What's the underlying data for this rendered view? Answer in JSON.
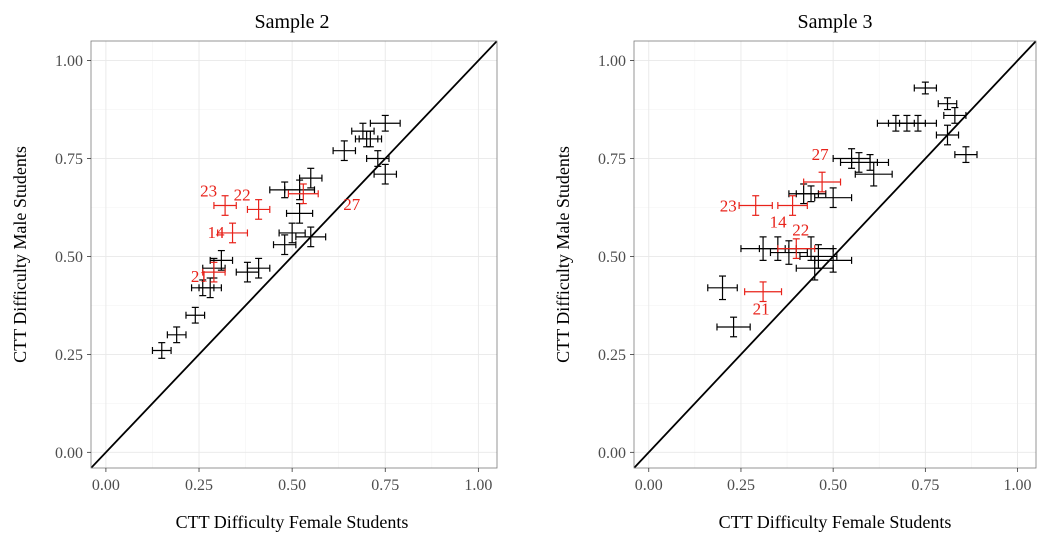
{
  "chart_data": [
    {
      "type": "scatter",
      "title": "Sample 2",
      "xlabel": "CTT Difficulty Female Students",
      "ylabel": "CTT Difficulty Male Students",
      "xlim": [
        -0.04,
        1.05
      ],
      "ylim": [
        -0.04,
        1.05
      ],
      "xticks": [
        "0.00",
        "0.25",
        "0.50",
        "0.75",
        "1.00"
      ],
      "yticks": [
        "0.00",
        "0.25",
        "0.50",
        "0.75",
        "1.00"
      ],
      "grid": true,
      "reference_line": "identity",
      "colors": {
        "default": "#000000",
        "highlight": "#e8221a"
      },
      "points": [
        {
          "x": 0.15,
          "y": 0.26,
          "ex": 0.025,
          "ey": 0.02
        },
        {
          "x": 0.19,
          "y": 0.3,
          "ex": 0.025,
          "ey": 0.02
        },
        {
          "x": 0.24,
          "y": 0.35,
          "ex": 0.025,
          "ey": 0.02
        },
        {
          "x": 0.26,
          "y": 0.42,
          "ex": 0.03,
          "ey": 0.02
        },
        {
          "x": 0.28,
          "y": 0.42,
          "ex": 0.03,
          "ey": 0.025
        },
        {
          "x": 0.29,
          "y": 0.47,
          "ex": 0.03,
          "ey": 0.025
        },
        {
          "x": 0.31,
          "y": 0.49,
          "ex": 0.03,
          "ey": 0.025
        },
        {
          "x": 0.38,
          "y": 0.46,
          "ex": 0.03,
          "ey": 0.025
        },
        {
          "x": 0.41,
          "y": 0.47,
          "ex": 0.03,
          "ey": 0.025
        },
        {
          "x": 0.48,
          "y": 0.53,
          "ex": 0.03,
          "ey": 0.025
        },
        {
          "x": 0.5,
          "y": 0.56,
          "ex": 0.035,
          "ey": 0.025
        },
        {
          "x": 0.55,
          "y": 0.55,
          "ex": 0.04,
          "ey": 0.025
        },
        {
          "x": 0.52,
          "y": 0.61,
          "ex": 0.035,
          "ey": 0.025
        },
        {
          "x": 0.48,
          "y": 0.67,
          "ex": 0.04,
          "ey": 0.02
        },
        {
          "x": 0.52,
          "y": 0.67,
          "ex": 0.04,
          "ey": 0.025
        },
        {
          "x": 0.55,
          "y": 0.7,
          "ex": 0.03,
          "ey": 0.025
        },
        {
          "x": 0.64,
          "y": 0.77,
          "ex": 0.03,
          "ey": 0.025
        },
        {
          "x": 0.69,
          "y": 0.82,
          "ex": 0.03,
          "ey": 0.02
        },
        {
          "x": 0.7,
          "y": 0.8,
          "ex": 0.03,
          "ey": 0.02
        },
        {
          "x": 0.71,
          "y": 0.8,
          "ex": 0.03,
          "ey": 0.02
        },
        {
          "x": 0.75,
          "y": 0.84,
          "ex": 0.04,
          "ey": 0.02
        },
        {
          "x": 0.73,
          "y": 0.75,
          "ex": 0.03,
          "ey": 0.02
        },
        {
          "x": 0.75,
          "y": 0.71,
          "ex": 0.03,
          "ey": 0.025
        },
        {
          "x": 0.32,
          "y": 0.63,
          "ex": 0.03,
          "ey": 0.025,
          "label": "23",
          "highlight": true
        },
        {
          "x": 0.41,
          "y": 0.62,
          "ex": 0.03,
          "ey": 0.025,
          "label": "22",
          "highlight": true
        },
        {
          "x": 0.53,
          "y": 0.66,
          "ex": 0.04,
          "ey": 0.025,
          "label": "27",
          "highlight": true
        },
        {
          "x": 0.34,
          "y": 0.56,
          "ex": 0.04,
          "ey": 0.025,
          "label": "14",
          "highlight": true
        },
        {
          "x": 0.29,
          "y": 0.46,
          "ex": 0.03,
          "ey": 0.025,
          "label": "21",
          "highlight": true
        }
      ]
    },
    {
      "type": "scatter",
      "title": "Sample 3",
      "xlabel": "CTT Difficulty Female Students",
      "ylabel": "CTT Difficulty Male Students",
      "xlim": [
        -0.04,
        1.05
      ],
      "ylim": [
        -0.04,
        1.05
      ],
      "xticks": [
        "0.00",
        "0.25",
        "0.50",
        "0.75",
        "1.00"
      ],
      "yticks": [
        "0.00",
        "0.25",
        "0.50",
        "0.75",
        "1.00"
      ],
      "grid": true,
      "reference_line": "identity",
      "colors": {
        "default": "#000000",
        "highlight": "#e8221a"
      },
      "points": [
        {
          "x": 0.23,
          "y": 0.32,
          "ex": 0.045,
          "ey": 0.025
        },
        {
          "x": 0.2,
          "y": 0.42,
          "ex": 0.04,
          "ey": 0.03
        },
        {
          "x": 0.31,
          "y": 0.52,
          "ex": 0.06,
          "ey": 0.03
        },
        {
          "x": 0.35,
          "y": 0.52,
          "ex": 0.05,
          "ey": 0.03
        },
        {
          "x": 0.38,
          "y": 0.51,
          "ex": 0.05,
          "ey": 0.03
        },
        {
          "x": 0.44,
          "y": 0.52,
          "ex": 0.06,
          "ey": 0.03
        },
        {
          "x": 0.46,
          "y": 0.5,
          "ex": 0.05,
          "ey": 0.03
        },
        {
          "x": 0.45,
          "y": 0.47,
          "ex": 0.05,
          "ey": 0.03
        },
        {
          "x": 0.5,
          "y": 0.49,
          "ex": 0.05,
          "ey": 0.03
        },
        {
          "x": 0.42,
          "y": 0.66,
          "ex": 0.04,
          "ey": 0.025
        },
        {
          "x": 0.44,
          "y": 0.66,
          "ex": 0.04,
          "ey": 0.02
        },
        {
          "x": 0.5,
          "y": 0.65,
          "ex": 0.05,
          "ey": 0.025
        },
        {
          "x": 0.55,
          "y": 0.75,
          "ex": 0.05,
          "ey": 0.025
        },
        {
          "x": 0.57,
          "y": 0.74,
          "ex": 0.05,
          "ey": 0.025
        },
        {
          "x": 0.6,
          "y": 0.74,
          "ex": 0.05,
          "ey": 0.02
        },
        {
          "x": 0.61,
          "y": 0.71,
          "ex": 0.05,
          "ey": 0.03
        },
        {
          "x": 0.67,
          "y": 0.84,
          "ex": 0.05,
          "ey": 0.02
        },
        {
          "x": 0.7,
          "y": 0.84,
          "ex": 0.05,
          "ey": 0.02
        },
        {
          "x": 0.73,
          "y": 0.84,
          "ex": 0.05,
          "ey": 0.02
        },
        {
          "x": 0.75,
          "y": 0.93,
          "ex": 0.03,
          "ey": 0.015
        },
        {
          "x": 0.81,
          "y": 0.89,
          "ex": 0.025,
          "ey": 0.015
        },
        {
          "x": 0.83,
          "y": 0.86,
          "ex": 0.03,
          "ey": 0.02
        },
        {
          "x": 0.81,
          "y": 0.81,
          "ex": 0.03,
          "ey": 0.025
        },
        {
          "x": 0.86,
          "y": 0.76,
          "ex": 0.03,
          "ey": 0.02
        },
        {
          "x": 0.29,
          "y": 0.63,
          "ex": 0.045,
          "ey": 0.025,
          "label": "23",
          "highlight": true
        },
        {
          "x": 0.39,
          "y": 0.63,
          "ex": 0.04,
          "ey": 0.025,
          "label": "14",
          "highlight": true
        },
        {
          "x": 0.47,
          "y": 0.69,
          "ex": 0.05,
          "ey": 0.025,
          "label": "27",
          "highlight": true
        },
        {
          "x": 0.4,
          "y": 0.52,
          "ex": 0.05,
          "ey": 0.025,
          "label": "22",
          "highlight": true
        },
        {
          "x": 0.31,
          "y": 0.41,
          "ex": 0.05,
          "ey": 0.025,
          "label": "21",
          "highlight": true
        }
      ]
    }
  ]
}
